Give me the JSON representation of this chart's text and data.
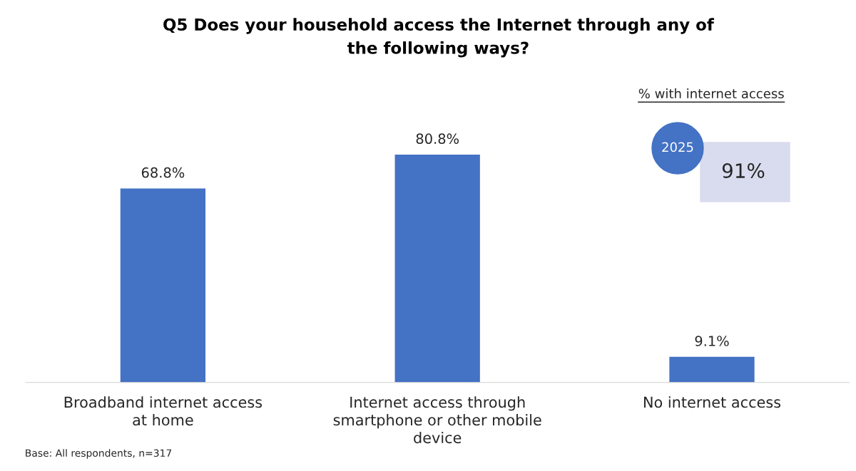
{
  "chart_data": {
    "type": "bar",
    "title": "Q5 Does your household access the Internet through any of\nthe following ways?",
    "categories": [
      "Broadband internet access\nat home",
      "Internet access through\nsmartphone or other mobile\ndevice",
      "No internet access"
    ],
    "values": [
      68.8,
      80.8,
      9.1
    ],
    "value_labels": [
      "68.8%",
      "80.8%",
      "9.1%"
    ],
    "color": "#4472c4",
    "grid": false,
    "legend": false,
    "annotations": [
      "% with internet access",
      "2025",
      "91%",
      "Base: All respondents, n=317"
    ]
  }
}
